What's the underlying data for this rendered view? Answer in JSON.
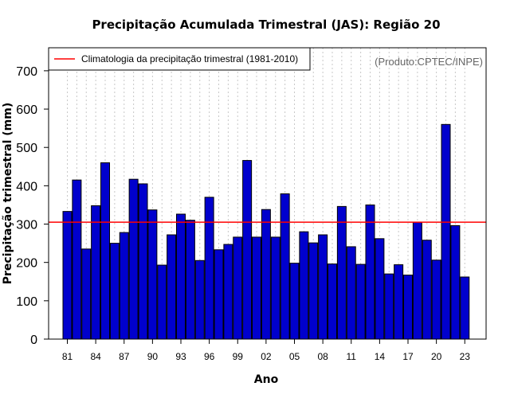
{
  "chart_data": {
    "type": "bar",
    "title": "Precipitação Acumulada Trimestral (JAS): Região 20",
    "xlabel": "Ano",
    "ylabel": "Precipitação trimestral (mm)",
    "ylim": [
      0,
      760
    ],
    "yticks": [
      0,
      100,
      200,
      300,
      400,
      500,
      600,
      700
    ],
    "x_tick_labels": [
      "81",
      "84",
      "87",
      "90",
      "93",
      "96",
      "99",
      "02",
      "05",
      "08",
      "11",
      "14",
      "17",
      "20",
      "23"
    ],
    "x_tick_every": 3,
    "grid": true,
    "categories": [
      "1981",
      "1982",
      "1983",
      "1984",
      "1985",
      "1986",
      "1987",
      "1988",
      "1989",
      "1990",
      "1991",
      "1992",
      "1993",
      "1994",
      "1995",
      "1996",
      "1997",
      "1998",
      "1999",
      "2000",
      "2001",
      "2002",
      "2003",
      "2004",
      "2005",
      "2006",
      "2007",
      "2008",
      "2009",
      "2010",
      "2011",
      "2012",
      "2013",
      "2014",
      "2015",
      "2016",
      "2017",
      "2018",
      "2019",
      "2020",
      "2021",
      "2022",
      "2023"
    ],
    "values": [
      333,
      415,
      235,
      348,
      460,
      250,
      278,
      417,
      405,
      337,
      193,
      272,
      326,
      310,
      205,
      370,
      233,
      247,
      266,
      466,
      266,
      338,
      266,
      379,
      198,
      280,
      251,
      272,
      196,
      346,
      241,
      195,
      350,
      262,
      170,
      194,
      167,
      305,
      258,
      206,
      560,
      296,
      162
    ],
    "bar_color": "#0000cd",
    "reference_line": {
      "value": 305,
      "color": "#ff0000",
      "label": "Climatologia da precipitação trimestral (1981-2010)"
    },
    "legend_position": "top-left",
    "credit": "(Produto:CPTEC/INPE)"
  }
}
